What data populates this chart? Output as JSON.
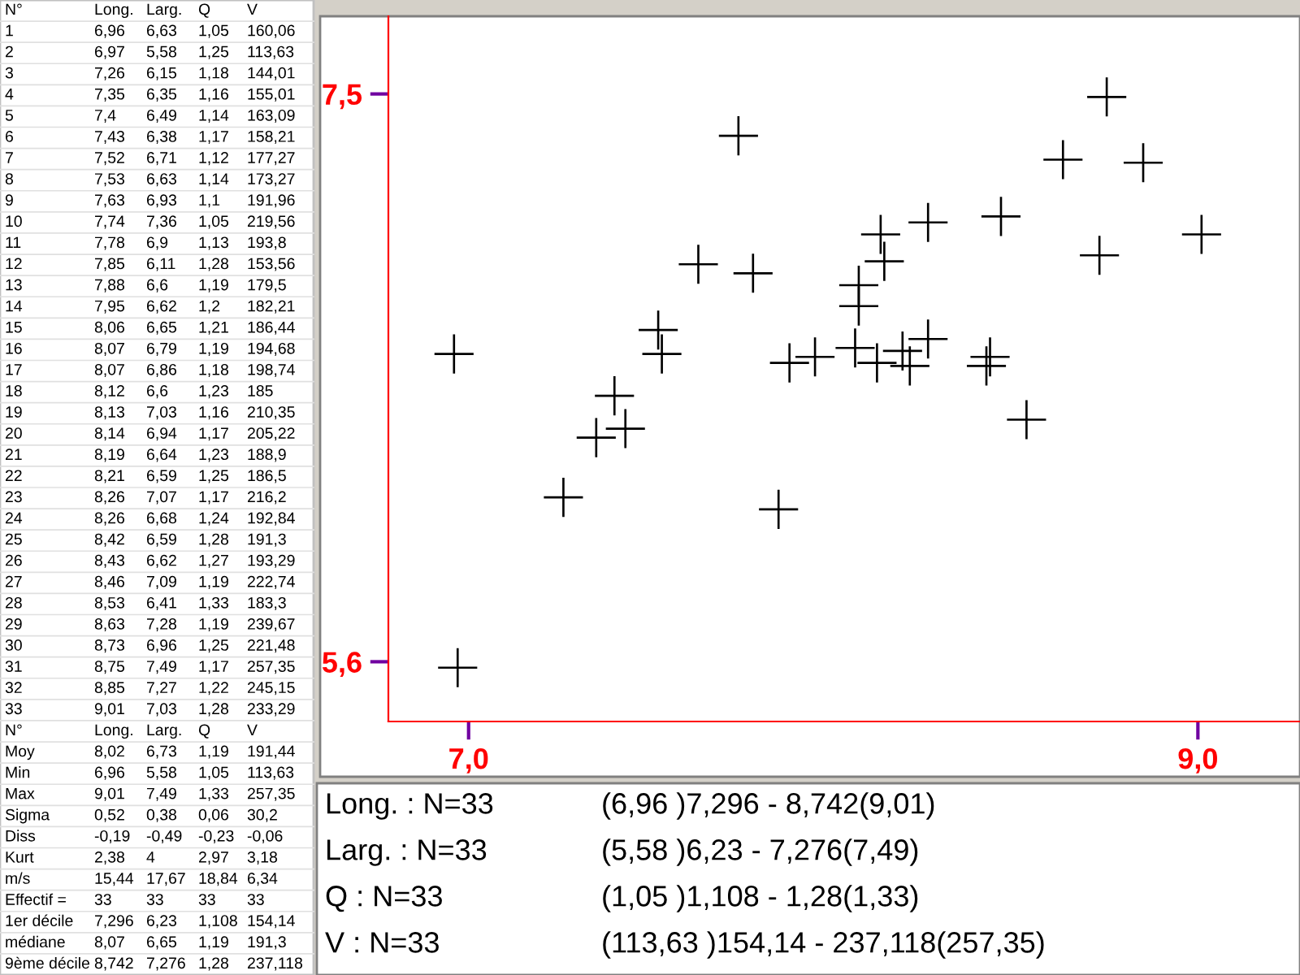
{
  "chart_data": {
    "type": "scatter",
    "x": [
      6.96,
      6.97,
      7.26,
      7.35,
      7.4,
      7.43,
      7.52,
      7.53,
      7.63,
      7.74,
      7.78,
      7.85,
      7.88,
      7.95,
      8.06,
      8.07,
      8.07,
      8.12,
      8.13,
      8.14,
      8.19,
      8.21,
      8.26,
      8.26,
      8.42,
      8.43,
      8.46,
      8.53,
      8.63,
      8.73,
      8.75,
      8.85,
      9.01
    ],
    "values": [
      6.63,
      5.58,
      6.15,
      6.35,
      6.49,
      6.38,
      6.71,
      6.63,
      6.93,
      7.36,
      6.9,
      6.11,
      6.6,
      6.62,
      6.65,
      6.79,
      6.86,
      6.6,
      7.03,
      6.94,
      6.64,
      6.59,
      7.07,
      6.68,
      6.59,
      6.62,
      7.09,
      6.41,
      7.28,
      6.96,
      7.49,
      7.27,
      7.03
    ],
    "color": "#000000",
    "marker": "cross",
    "grid": false,
    "xlim": [
      6.78,
      9.28
    ],
    "ylim": [
      5.4,
      7.76
    ],
    "xticks": [
      {
        "value": 7.0,
        "label": "7,0"
      },
      {
        "value": 9.0,
        "label": "9,0"
      }
    ],
    "yticks": [
      {
        "value": 5.6,
        "label": "5,6"
      },
      {
        "value": 7.5,
        "label": "7,5"
      }
    ],
    "annotations": [
      "N°",
      "Long.",
      "Larg.",
      "Q",
      "V",
      "1",
      "6,96",
      "6,63",
      "1,05",
      "160,06",
      "2",
      "6,97",
      "5,58",
      "1,25",
      "113,63",
      "3",
      "7,26",
      "6,15",
      "1,18",
      "144,01",
      "4",
      "7,35",
      "6,35",
      "1,16",
      "155,01",
      "5",
      "7,4",
      "6,49",
      "1,14",
      "163,09",
      "6",
      "7,43",
      "6,38",
      "1,17",
      "158,21",
      "7",
      "7,52",
      "6,71",
      "1,12",
      "177,27",
      "8",
      "7,53",
      "6,63",
      "1,14",
      "173,27",
      "9",
      "7,63",
      "6,93",
      "1,1",
      "191,96",
      "10",
      "7,74",
      "7,36",
      "1,05",
      "219,56",
      "11",
      "7,78",
      "6,9",
      "1,13",
      "193,8",
      "12",
      "7,85",
      "6,11",
      "1,28",
      "153,56",
      "13",
      "7,88",
      "6,6",
      "1,19",
      "179,5",
      "14",
      "7,95",
      "6,62",
      "1,2",
      "182,21",
      "15",
      "8,06",
      "6,65",
      "1,21",
      "186,44",
      "16",
      "8,07",
      "6,79",
      "1,19",
      "194,68",
      "17",
      "8,07",
      "6,86",
      "1,18",
      "198,74",
      "18",
      "8,12",
      "6,6",
      "1,23",
      "185",
      "19",
      "8,13",
      "7,03",
      "1,16",
      "210,35",
      "20",
      "8,14",
      "6,94",
      "1,17",
      "205,22",
      "21",
      "8,19",
      "6,64",
      "1,23",
      "188,9",
      "22",
      "8,21",
      "6,59",
      "1,25",
      "186,5",
      "23",
      "8,26",
      "7,07",
      "1,17",
      "216,2",
      "24",
      "8,26",
      "6,68",
      "1,24",
      "192,84",
      "25",
      "8,42",
      "6,59",
      "1,28",
      "191,3",
      "26",
      "8,43",
      "6,62",
      "1,27",
      "193,29",
      "27",
      "8,46",
      "7,09",
      "1,19",
      "222,74",
      "28",
      "8,53",
      "6,41",
      "1,33",
      "183,3",
      "29",
      "8,63",
      "7,28",
      "1,19",
      "239,67",
      "30",
      "8,73",
      "6,96",
      "1,25",
      "221,48",
      "31",
      "8,75",
      "7,49",
      "1,17",
      "257,35",
      "32",
      "8,85",
      "7,27",
      "1,22",
      "245,15",
      "33",
      "9,01",
      "7,03",
      "1,28",
      "233,29",
      "N°",
      "Long.",
      "Larg.",
      "Q",
      "V",
      "Moy",
      "8,02",
      "6,73",
      "1,19",
      "191,44",
      "Min",
      "6,96",
      "5,58",
      "1,05",
      "113,63",
      "Max",
      "9,01",
      "7,49",
      "1,33",
      "257,35",
      "Sigma",
      "0,52",
      "0,38",
      "0,06",
      "30,2",
      "Diss",
      "-0,19",
      "-0,49",
      "-0,23",
      "-0,06",
      "Kurt",
      "2,38",
      "4",
      "2,97",
      "3,18",
      "m/s",
      "15,44",
      "17,67",
      "18,84",
      "6,34",
      "Effectif =",
      "33",
      "33",
      "33",
      "33",
      "1er décile",
      "7,296",
      "6,23",
      "1,108",
      "154,14",
      "médiane",
      "8,07",
      "6,65",
      "1,19",
      "191,3",
      "9ème décile",
      "8,742",
      "7,276",
      "1,28",
      "237,118",
      "Long. : N=33",
      "(6,96 )7,296 - 8,742(9,01)",
      "Larg. : N=33",
      "(5,58 )6,23 - 7,276(7,49)",
      "Q : N=33",
      "(1,05 )1,108 - 1,28(1,33)",
      "V : N=33",
      "(113,63 )154,14 - 237,118(257,35)"
    ]
  }
}
